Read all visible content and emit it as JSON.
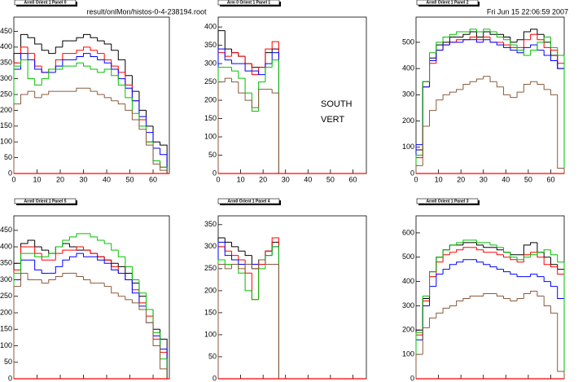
{
  "header": {
    "file": "result/onlMon/histos-0-4-238194.root",
    "date": "Fri Jun 15 22:06:59 2007",
    "label1": "SOUTH",
    "label2": "VERT"
  },
  "chart_data": [
    {
      "type": "histogram",
      "title": "Arm0 Orient 1 Panel 0",
      "xlim": [
        0,
        67
      ],
      "ylim": [
        0,
        495
      ],
      "xticks": [
        0,
        10,
        20,
        30,
        40,
        50,
        60
      ],
      "yticks": [
        0,
        50,
        100,
        150,
        200,
        250,
        300,
        350,
        400,
        450
      ],
      "bins": [
        0,
        3,
        6,
        9,
        12,
        15,
        18,
        21,
        24,
        27,
        30,
        33,
        36,
        39,
        42,
        45,
        48,
        51,
        54,
        57,
        60,
        63,
        66
      ],
      "series": [
        {
          "color": "#000000",
          "values": [
            380,
            440,
            430,
            410,
            390,
            380,
            400,
            420,
            420,
            430,
            440,
            430,
            420,
            410,
            390,
            360,
            310,
            260,
            200,
            150,
            100,
            90
          ]
        },
        {
          "color": "#ff0000",
          "values": [
            350,
            400,
            380,
            340,
            320,
            330,
            360,
            380,
            380,
            390,
            400,
            390,
            380,
            360,
            340,
            320,
            280,
            230,
            170,
            100,
            40,
            20
          ]
        },
        {
          "color": "#0000ff",
          "values": [
            330,
            380,
            360,
            330,
            320,
            320,
            340,
            360,
            360,
            370,
            380,
            370,
            360,
            350,
            330,
            300,
            270,
            230,
            180,
            130,
            80,
            60
          ]
        },
        {
          "color": "#00c000",
          "values": [
            340,
            360,
            300,
            280,
            300,
            330,
            330,
            340,
            340,
            350,
            340,
            330,
            320,
            330,
            310,
            280,
            240,
            190,
            150,
            100,
            40,
            20
          ]
        },
        {
          "color": "#8b5a3c",
          "values": [
            220,
            250,
            260,
            240,
            250,
            260,
            260,
            260,
            260,
            270,
            270,
            260,
            250,
            240,
            230,
            220,
            200,
            170,
            140,
            90,
            30,
            10
          ]
        }
      ]
    },
    {
      "type": "histogram",
      "title": "Arm 0 Orient 1 Panel 1",
      "xlim": [
        0,
        66
      ],
      "ylim": [
        0,
        427
      ],
      "xticks": [
        0,
        10,
        20,
        30,
        40,
        50,
        60
      ],
      "yticks": [
        0,
        50,
        100,
        150,
        200,
        250,
        300,
        350,
        400
      ],
      "bins": [
        0,
        3,
        6,
        9,
        12,
        15,
        18,
        21,
        24,
        27
      ],
      "series": [
        {
          "color": "#000000",
          "values": [
            390,
            340,
            330,
            320,
            300,
            290,
            290,
            330,
            340
          ]
        },
        {
          "color": "#ff0000",
          "values": [
            330,
            320,
            330,
            320,
            300,
            270,
            290,
            340,
            360
          ]
        },
        {
          "color": "#0000ff",
          "values": [
            340,
            310,
            300,
            300,
            280,
            280,
            270,
            300,
            330
          ]
        },
        {
          "color": "#00c000",
          "values": [
            290,
            290,
            280,
            260,
            220,
            170,
            250,
            290,
            310
          ]
        },
        {
          "color": "#8b5a3c",
          "values": [
            250,
            260,
            250,
            220,
            200,
            180,
            230,
            230,
            220
          ]
        }
      ]
    },
    {
      "type": "histogram",
      "title": "Arm0 Orient 1 Panel 2",
      "xlim": [
        0,
        66
      ],
      "ylim": [
        0,
        596
      ],
      "xticks": [
        0,
        10,
        20,
        30,
        40,
        50,
        60
      ],
      "yticks": [
        0,
        100,
        200,
        300,
        400,
        500
      ],
      "bins": [
        0,
        3,
        6,
        9,
        12,
        15,
        18,
        21,
        24,
        27,
        30,
        33,
        36,
        39,
        42,
        45,
        48,
        51,
        54,
        57,
        60,
        63,
        66
      ],
      "series": [
        {
          "color": "#000000",
          "values": [
            90,
            350,
            440,
            490,
            500,
            520,
            520,
            530,
            540,
            520,
            540,
            530,
            530,
            520,
            500,
            510,
            540,
            550,
            530,
            500,
            450,
            400
          ]
        },
        {
          "color": "#ff0000",
          "values": [
            60,
            330,
            420,
            470,
            490,
            500,
            510,
            510,
            520,
            510,
            520,
            500,
            500,
            490,
            480,
            480,
            510,
            530,
            510,
            480,
            470,
            420
          ]
        },
        {
          "color": "#0000ff",
          "values": [
            110,
            330,
            430,
            470,
            490,
            500,
            500,
            510,
            510,
            500,
            510,
            500,
            490,
            480,
            470,
            460,
            480,
            490,
            470,
            450,
            430,
            400
          ]
        },
        {
          "color": "#00c000",
          "values": [
            70,
            350,
            460,
            500,
            520,
            530,
            540,
            540,
            550,
            540,
            550,
            540,
            520,
            510,
            490,
            470,
            450,
            470,
            500,
            520,
            480,
            450
          ]
        },
        {
          "color": "#8b5a3c",
          "values": [
            30,
            180,
            240,
            280,
            300,
            310,
            320,
            340,
            350,
            360,
            370,
            350,
            330,
            300,
            290,
            310,
            340,
            350,
            340,
            320,
            300,
            20
          ]
        }
      ]
    },
    {
      "type": "histogram",
      "title": "Arm0 Orient 1 Panel 5",
      "xlim": [
        0,
        67
      ],
      "ylim": [
        0,
        494
      ],
      "xticks": [
        0,
        10,
        20,
        30,
        40,
        50,
        60
      ],
      "yticks": [
        0,
        50,
        100,
        150,
        200,
        250,
        300,
        350,
        400,
        450
      ],
      "bins": [
        0,
        3,
        6,
        9,
        12,
        15,
        18,
        21,
        24,
        27,
        30,
        33,
        36,
        39,
        42,
        45,
        48,
        51,
        54,
        57,
        60,
        63,
        66
      ],
      "series": [
        {
          "color": "#000000",
          "values": [
            350,
            410,
            420,
            400,
            390,
            380,
            400,
            410,
            400,
            390,
            390,
            380,
            370,
            360,
            350,
            340,
            320,
            290,
            250,
            210,
            150,
            120
          ]
        },
        {
          "color": "#ff0000",
          "values": [
            330,
            400,
            400,
            380,
            360,
            360,
            380,
            390,
            390,
            400,
            390,
            380,
            370,
            360,
            340,
            320,
            300,
            270,
            230,
            190,
            120,
            80
          ]
        },
        {
          "color": "#0000ff",
          "values": [
            300,
            360,
            360,
            330,
            320,
            320,
            340,
            360,
            370,
            380,
            370,
            370,
            360,
            350,
            330,
            320,
            300,
            260,
            220,
            170,
            130,
            90
          ]
        },
        {
          "color": "#00c000",
          "values": [
            320,
            380,
            380,
            370,
            370,
            380,
            400,
            420,
            430,
            440,
            440,
            430,
            420,
            410,
            390,
            370,
            340,
            300,
            260,
            210,
            140,
            60
          ]
        },
        {
          "color": "#8b5a3c",
          "values": [
            280,
            320,
            300,
            300,
            290,
            300,
            310,
            320,
            320,
            310,
            300,
            290,
            290,
            280,
            260,
            250,
            240,
            230,
            210,
            170,
            100,
            30
          ]
        }
      ]
    },
    {
      "type": "histogram",
      "title": "Arm0 Orient 1 Panel 4",
      "xlim": [
        0,
        66
      ],
      "ylim": [
        0,
        370
      ],
      "xticks": [
        0,
        10,
        20,
        30,
        40,
        50,
        60
      ],
      "yticks": [
        0,
        50,
        100,
        150,
        200,
        250,
        300,
        350
      ],
      "bins": [
        0,
        3,
        6,
        9,
        12,
        15,
        18,
        21,
        24,
        27
      ],
      "series": [
        {
          "color": "#000000",
          "values": [
            320,
            310,
            300,
            290,
            280,
            250,
            270,
            290,
            310
          ]
        },
        {
          "color": "#ff0000",
          "values": [
            300,
            290,
            280,
            270,
            240,
            180,
            260,
            290,
            320
          ]
        },
        {
          "color": "#0000ff",
          "values": [
            310,
            280,
            270,
            260,
            260,
            260,
            270,
            280,
            300
          ]
        },
        {
          "color": "#00c000",
          "values": [
            270,
            260,
            260,
            240,
            200,
            180,
            250,
            280,
            300
          ]
        },
        {
          "color": "#8b5a3c",
          "values": [
            260,
            250,
            260,
            250,
            260,
            250,
            270,
            260,
            260
          ]
        }
      ]
    },
    {
      "type": "histogram",
      "title": "Arm0 Orient 1 Panel 3",
      "xlim": [
        0,
        66
      ],
      "ylim": [
        0,
        670
      ],
      "xticks": [
        0,
        10,
        20,
        30,
        40,
        50,
        60
      ],
      "yticks": [
        0,
        100,
        200,
        300,
        400,
        500,
        600
      ],
      "bins": [
        0,
        3,
        6,
        9,
        12,
        15,
        18,
        21,
        24,
        27,
        30,
        33,
        36,
        39,
        42,
        45,
        48,
        51,
        54,
        57,
        60,
        63,
        66
      ],
      "series": [
        {
          "color": "#000000",
          "values": [
            200,
            330,
            440,
            500,
            530,
            550,
            550,
            560,
            560,
            550,
            540,
            540,
            530,
            520,
            510,
            510,
            550,
            560,
            520,
            500,
            470,
            450
          ]
        },
        {
          "color": "#ff0000",
          "values": [
            180,
            320,
            420,
            480,
            510,
            520,
            530,
            540,
            540,
            530,
            520,
            520,
            510,
            500,
            490,
            480,
            510,
            520,
            500,
            470,
            460,
            430
          ]
        },
        {
          "color": "#0000ff",
          "values": [
            160,
            300,
            380,
            430,
            450,
            470,
            480,
            490,
            490,
            480,
            470,
            460,
            450,
            440,
            430,
            420,
            420,
            430,
            420,
            400,
            380,
            330
          ]
        },
        {
          "color": "#00c000",
          "values": [
            190,
            340,
            440,
            500,
            530,
            550,
            560,
            570,
            570,
            560,
            560,
            550,
            540,
            520,
            500,
            490,
            500,
            510,
            520,
            530,
            510,
            480
          ]
        },
        {
          "color": "#8b5a3c",
          "values": [
            100,
            210,
            250,
            270,
            290,
            300,
            320,
            330,
            340,
            340,
            350,
            350,
            340,
            330,
            320,
            330,
            350,
            360,
            340,
            300,
            270,
            30
          ]
        }
      ]
    }
  ]
}
